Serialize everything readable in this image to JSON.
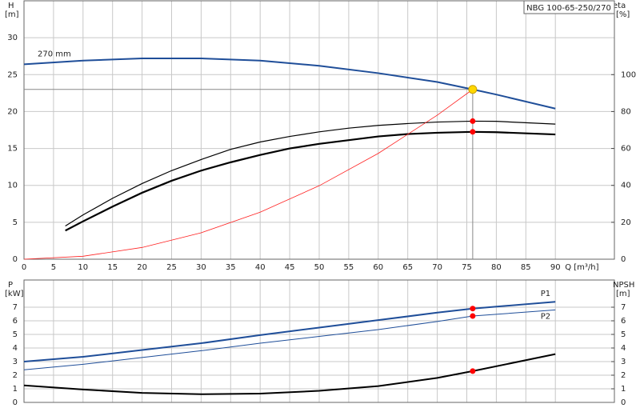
{
  "chart_data": [
    {
      "type": "line",
      "title": "NBG 100-65-250/270",
      "x_label": "Q [m³/h]",
      "y_label": "H",
      "y_unit": "[m]",
      "y2_label": "eta",
      "y2_unit": "[%]",
      "xlim": [
        0,
        100
      ],
      "xticks": [
        0,
        5,
        10,
        15,
        20,
        25,
        30,
        35,
        40,
        45,
        50,
        55,
        60,
        65,
        70,
        75,
        80,
        85,
        90
      ],
      "xtick_labels": true,
      "ylim": [
        0,
        35
      ],
      "yticks": [
        0,
        5,
        10,
        15,
        20,
        25,
        30
      ],
      "y2lim": [
        0,
        140
      ],
      "y2ticks": [
        0,
        20,
        40,
        60,
        80,
        100
      ],
      "grid": true,
      "annotation": "270 mm",
      "series": [
        {
          "color": "#1f4e99",
          "line_width": 2,
          "x": [
            0,
            10,
            20,
            30,
            40,
            50,
            60,
            70,
            76,
            80,
            90
          ],
          "values": [
            26.4,
            26.9,
            27.2,
            27.2,
            26.9,
            26.2,
            25.2,
            24,
            23,
            22.3,
            20.4
          ]
        },
        {
          "color": "#000000",
          "line_width": 1.2,
          "axis": "y2",
          "x": [
            7,
            10,
            15,
            20,
            25,
            30,
            35,
            40,
            45,
            50,
            55,
            60,
            65,
            70,
            76,
            80,
            90
          ],
          "values": [
            18,
            24,
            33,
            41,
            48,
            54,
            59.5,
            63.5,
            66.5,
            69,
            71,
            72.5,
            73.5,
            74.3,
            74.8,
            74.7,
            73.2
          ]
        },
        {
          "color": "#000000",
          "line_width": 2.2,
          "axis": "y2",
          "x": [
            7,
            10,
            15,
            20,
            25,
            30,
            35,
            40,
            45,
            50,
            55,
            60,
            65,
            70,
            76,
            80,
            90
          ],
          "values": [
            15.5,
            20.5,
            28.5,
            36,
            42.5,
            48,
            52.5,
            56.5,
            60,
            62.5,
            64.5,
            66.5,
            67.8,
            68.5,
            69,
            68.8,
            67.6
          ]
        },
        {
          "color": "#ff2020",
          "line_width": 0.8,
          "x": [
            0,
            10,
            20,
            30,
            40,
            50,
            60,
            70,
            76
          ],
          "values": [
            0,
            0.4,
            1.59,
            3.58,
            6.37,
            9.95,
            14.33,
            19.51,
            23
          ]
        }
      ],
      "points": [
        {
          "x": 76,
          "y": 74.8,
          "axis": "y2",
          "color": "#ff0000"
        },
        {
          "x": 76,
          "y": 69,
          "axis": "y2",
          "color": "#ff0000"
        }
      ],
      "duty_point": {
        "x": 76,
        "y": 23,
        "color": "#ffd700"
      }
    },
    {
      "type": "line",
      "y_label": "P",
      "y_unit": "[kW]",
      "y2_label": "NPSH",
      "y2_unit": "[m]",
      "xlim": [
        0,
        100
      ],
      "xticks": [
        0,
        5,
        10,
        15,
        20,
        25,
        30,
        35,
        40,
        45,
        50,
        55,
        60,
        65,
        70,
        75,
        80,
        85,
        90
      ],
      "xtick_labels": false,
      "ylim": [
        0,
        9
      ],
      "yticks": [
        0,
        1,
        2,
        3,
        4,
        5,
        6,
        7
      ],
      "y2lim": [
        0,
        9
      ],
      "y2ticks": [
        0,
        1,
        2,
        3,
        4,
        5,
        6,
        7
      ],
      "grid": true,
      "series": [
        {
          "name": "P1",
          "color": "#1f4e99",
          "line_width": 2,
          "x": [
            0,
            10,
            20,
            30,
            40,
            50,
            60,
            70,
            76,
            90
          ],
          "values": [
            3,
            3.35,
            3.85,
            4.35,
            4.95,
            5.5,
            6.05,
            6.6,
            6.9,
            7.4
          ]
        },
        {
          "name": "P2",
          "color": "#1f4e99",
          "line_width": 1,
          "x": [
            0,
            10,
            20,
            30,
            40,
            50,
            60,
            70,
            76,
            90
          ],
          "values": [
            2.4,
            2.8,
            3.3,
            3.8,
            4.35,
            4.85,
            5.35,
            5.95,
            6.35,
            6.8
          ]
        },
        {
          "color": "#000000",
          "line_width": 2,
          "axis": "y2",
          "x": [
            0,
            10,
            20,
            30,
            40,
            50,
            60,
            70,
            76,
            90
          ],
          "values": [
            1.25,
            0.95,
            0.7,
            0.6,
            0.65,
            0.85,
            1.2,
            1.8,
            2.3,
            3.55
          ]
        }
      ],
      "points": [
        {
          "x": 76,
          "y": 6.9,
          "color": "#ff0000"
        },
        {
          "x": 76,
          "y": 6.35,
          "color": "#ff0000"
        },
        {
          "x": 76,
          "y": 2.3,
          "axis": "y2",
          "color": "#ff0000"
        }
      ]
    }
  ]
}
